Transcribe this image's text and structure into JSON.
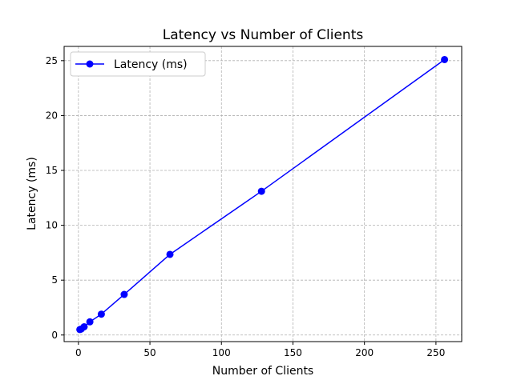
{
  "chart_data": {
    "type": "line",
    "title": "Latency vs Number of Clients",
    "xlabel": "Number of Clients",
    "ylabel": "Latency (ms)",
    "xlim": [
      -10,
      268
    ],
    "ylim": [
      -0.6,
      26.3
    ],
    "xticks": [
      0,
      50,
      100,
      150,
      200,
      250
    ],
    "yticks": [
      0,
      5,
      10,
      15,
      20,
      25
    ],
    "grid": true,
    "legend_position": "upper-left",
    "series": [
      {
        "name": "Latency (ms)",
        "color": "#0000ff",
        "marker": "circle",
        "x": [
          1,
          2,
          4,
          8,
          16,
          32,
          64,
          128,
          256
        ],
        "y": [
          0.5,
          0.55,
          0.75,
          1.2,
          1.9,
          3.7,
          7.35,
          13.1,
          25.1
        ]
      }
    ]
  }
}
